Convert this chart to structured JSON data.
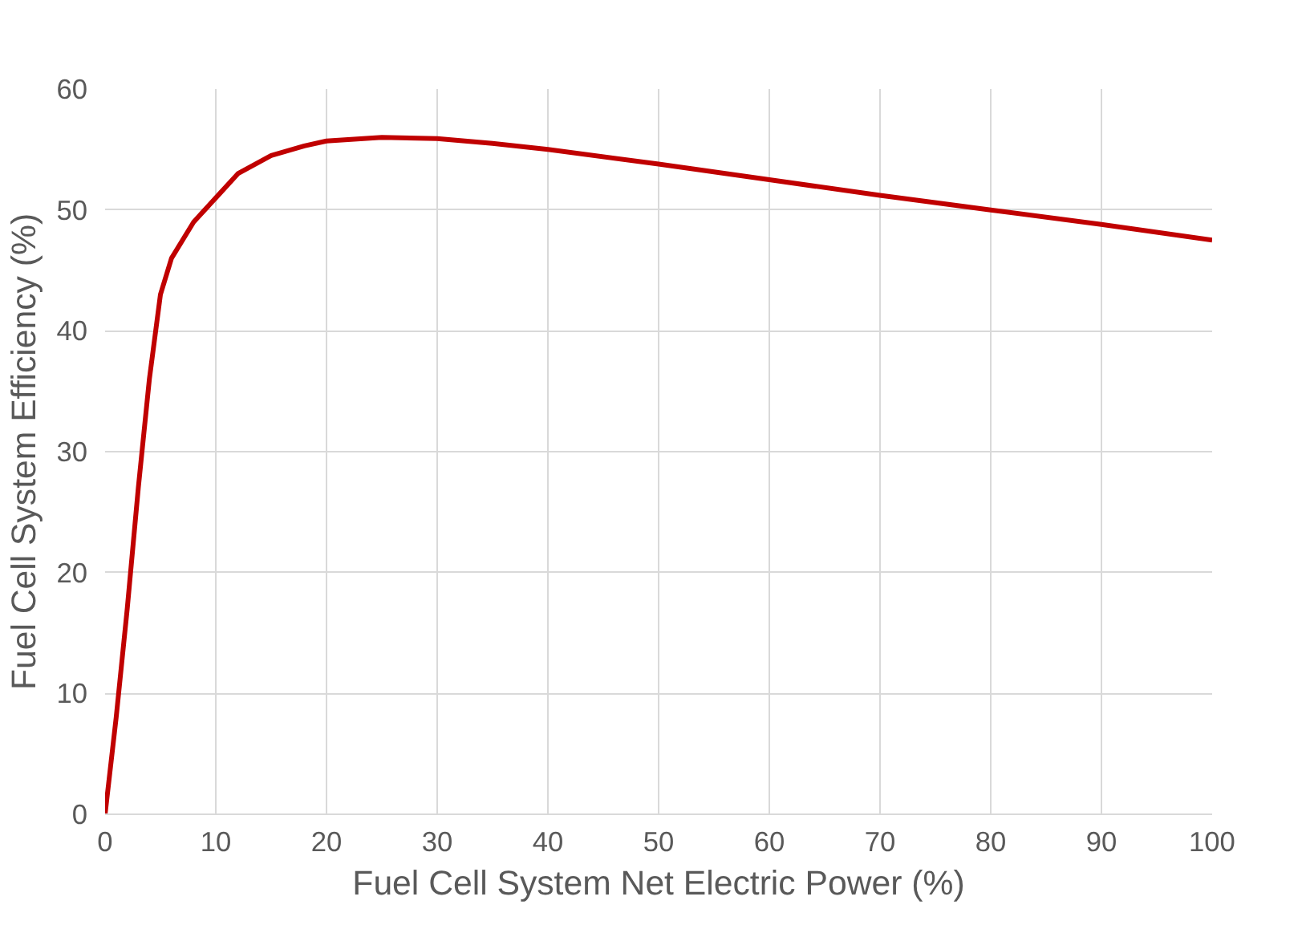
{
  "chart_data": {
    "type": "line",
    "xlabel": "Fuel Cell System Net Electric Power (%)",
    "ylabel": "Fuel Cell System Efficiency (%)",
    "x": [
      0,
      1,
      2,
      3,
      4,
      5,
      6,
      8,
      10,
      12,
      15,
      18,
      20,
      25,
      30,
      35,
      40,
      50,
      60,
      70,
      80,
      90,
      100
    ],
    "series": [
      {
        "color": "#c00000",
        "values": [
          0,
          8,
          17,
          27,
          36,
          43,
          46,
          49,
          51,
          53,
          54.5,
          55.3,
          55.7,
          56,
          55.9,
          55.5,
          55,
          53.8,
          52.5,
          51.2,
          50,
          48.8,
          47.5
        ]
      }
    ],
    "xlim": [
      0,
      100
    ],
    "ylim": [
      0,
      60
    ],
    "xticks": [
      0,
      10,
      20,
      30,
      40,
      50,
      60,
      70,
      80,
      90,
      100
    ],
    "yticks": [
      0,
      10,
      20,
      30,
      40,
      50,
      60
    ],
    "grid": true,
    "marker": "none",
    "line_style": "solid"
  }
}
